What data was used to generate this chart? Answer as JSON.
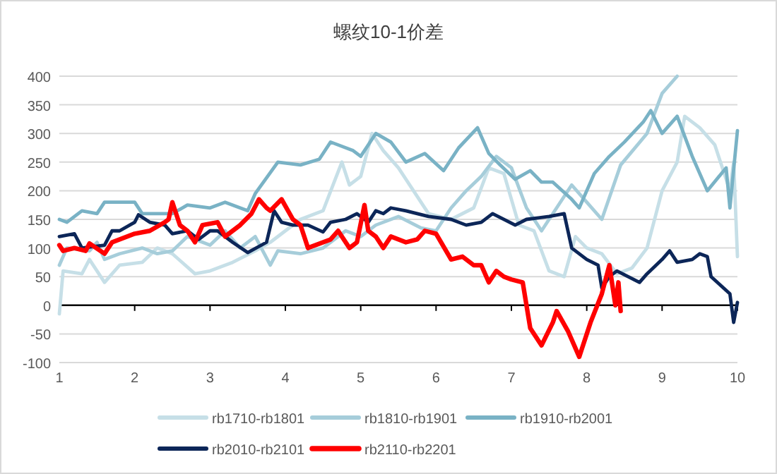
{
  "chart_data": {
    "type": "line",
    "title": "螺纹10-1价差",
    "xlim": [
      1,
      10
    ],
    "xticks": [
      1,
      2,
      3,
      4,
      5,
      6,
      7,
      8,
      9,
      10
    ],
    "ylim": [
      -100,
      400
    ],
    "yticks": [
      -100,
      -50,
      0,
      50,
      100,
      150,
      200,
      250,
      300,
      350,
      400
    ],
    "grid": "y",
    "legend": "bottom",
    "marker": "none",
    "line_style": "solid",
    "series": [
      {
        "name": "rb1710-rb1801",
        "color": "#c6dfe7",
        "x": [
          1,
          1.05,
          1.3,
          1.4,
          1.6,
          1.8,
          2.1,
          2.3,
          2.5,
          2.8,
          3.0,
          3.3,
          3.6,
          3.8,
          4.2,
          4.5,
          4.75,
          4.85,
          5.0,
          5.15,
          5.3,
          5.5,
          5.7,
          5.9,
          6.2,
          6.5,
          6.7,
          6.9,
          7.1,
          7.3,
          7.5,
          7.7,
          7.85,
          8.0,
          8.2,
          8.4,
          8.6,
          8.8,
          9.0,
          9.2,
          9.3,
          9.5,
          9.7,
          9.9,
          9.95,
          10.0
        ],
        "values": [
          -15,
          60,
          55,
          80,
          40,
          70,
          75,
          100,
          90,
          55,
          60,
          75,
          95,
          110,
          150,
          165,
          250,
          210,
          225,
          300,
          270,
          240,
          200,
          160,
          150,
          170,
          240,
          230,
          140,
          130,
          60,
          50,
          120,
          100,
          90,
          55,
          65,
          100,
          200,
          250,
          330,
          310,
          280,
          200,
          250,
          85
        ]
      },
      {
        "name": "rb1810-rb1901",
        "color": "#a6cdda",
        "x": [
          1,
          1.1,
          1.4,
          1.5,
          1.6,
          1.8,
          2.1,
          2.3,
          2.5,
          2.7,
          3.0,
          3.2,
          3.4,
          3.6,
          3.8,
          3.9,
          4.2,
          4.5,
          4.8,
          5.0,
          5.2,
          5.5,
          5.8,
          6.0,
          6.2,
          6.4,
          6.6,
          6.8,
          7.0,
          7.2,
          7.4,
          7.6,
          7.8,
          8.0,
          8.2,
          8.45,
          8.8,
          9.0,
          9.2
        ],
        "values": [
          70,
          100,
          95,
          110,
          80,
          90,
          100,
          90,
          95,
          120,
          105,
          130,
          100,
          120,
          70,
          95,
          90,
          100,
          130,
          120,
          140,
          155,
          135,
          130,
          170,
          200,
          225,
          260,
          240,
          170,
          130,
          170,
          210,
          180,
          150,
          245,
          300,
          370,
          400
        ]
      },
      {
        "name": "rb1910-rb2001",
        "color": "#79b2c5",
        "x": [
          1,
          1.1,
          1.3,
          1.5,
          1.6,
          2.0,
          2.1,
          2.5,
          2.7,
          3.0,
          3.2,
          3.5,
          3.6,
          3.9,
          4.2,
          4.45,
          4.6,
          4.9,
          5.0,
          5.2,
          5.4,
          5.6,
          5.85,
          6.1,
          6.3,
          6.55,
          6.7,
          6.85,
          7.05,
          7.25,
          7.4,
          7.55,
          7.8,
          7.9,
          8.1,
          8.3,
          8.5,
          8.75,
          8.85,
          9.0,
          9.2,
          9.4,
          9.6,
          9.85,
          9.9,
          10.0
        ],
        "values": [
          150,
          145,
          165,
          160,
          180,
          180,
          160,
          160,
          175,
          170,
          180,
          165,
          195,
          250,
          245,
          255,
          285,
          270,
          260,
          300,
          285,
          250,
          265,
          235,
          275,
          310,
          265,
          245,
          220,
          235,
          215,
          215,
          185,
          170,
          230,
          260,
          285,
          320,
          340,
          300,
          330,
          260,
          200,
          240,
          170,
          305
        ]
      },
      {
        "name": "rb2010-rb2101",
        "color": "#0c2658",
        "x": [
          1,
          1.2,
          1.3,
          1.6,
          1.7,
          1.8,
          2.0,
          2.05,
          2.2,
          2.4,
          2.5,
          2.7,
          2.85,
          3.0,
          3.1,
          3.3,
          3.5,
          3.75,
          3.85,
          3.95,
          4.1,
          4.3,
          4.5,
          4.6,
          4.8,
          4.95,
          5.1,
          5.2,
          5.3,
          5.4,
          5.6,
          5.9,
          6.2,
          6.4,
          6.6,
          6.75,
          7.05,
          7.2,
          7.5,
          7.7,
          7.8,
          8.0,
          8.15,
          8.2,
          8.3,
          8.4,
          8.7,
          8.8,
          9.0,
          9.1,
          9.2,
          9.4,
          9.5,
          9.6,
          9.65,
          9.9,
          9.95,
          10.0
        ],
        "values": [
          120,
          125,
          100,
          105,
          130,
          130,
          145,
          158,
          145,
          140,
          125,
          130,
          115,
          130,
          130,
          110,
          92,
          110,
          165,
          145,
          140,
          140,
          128,
          145,
          150,
          160,
          145,
          165,
          160,
          170,
          165,
          155,
          150,
          140,
          145,
          160,
          140,
          150,
          155,
          160,
          100,
          80,
          70,
          30,
          50,
          60,
          40,
          55,
          80,
          95,
          75,
          80,
          90,
          85,
          50,
          20,
          -30,
          5
        ]
      },
      {
        "name": "rb2110-rb2201",
        "color": "#ff0000",
        "x": [
          1,
          1.05,
          1.2,
          1.35,
          1.4,
          1.6,
          1.7,
          2.0,
          2.2,
          2.4,
          2.45,
          2.5,
          2.6,
          2.7,
          2.8,
          2.9,
          3.1,
          3.2,
          3.4,
          3.55,
          3.65,
          3.75,
          3.8,
          3.95,
          4.1,
          4.2,
          4.3,
          4.5,
          4.6,
          4.7,
          4.85,
          4.95,
          5.05,
          5.1,
          5.2,
          5.3,
          5.4,
          5.6,
          5.75,
          5.85,
          6.0,
          6.2,
          6.35,
          6.5,
          6.6,
          6.7,
          6.8,
          6.9,
          7.0,
          7.15,
          7.25,
          7.4,
          7.55,
          7.6,
          7.75,
          7.9,
          8.05,
          8.2,
          8.3,
          8.38,
          8.42,
          8.45
        ],
        "values": [
          105,
          95,
          100,
          95,
          108,
          90,
          110,
          125,
          130,
          145,
          150,
          180,
          140,
          130,
          110,
          140,
          145,
          120,
          140,
          160,
          185,
          170,
          165,
          185,
          150,
          140,
          100,
          110,
          115,
          130,
          100,
          110,
          175,
          130,
          120,
          100,
          120,
          110,
          115,
          130,
          125,
          80,
          85,
          70,
          70,
          40,
          60,
          50,
          45,
          40,
          -40,
          -70,
          -30,
          -10,
          -45,
          -90,
          -30,
          20,
          70,
          0,
          40,
          -10
        ]
      }
    ]
  }
}
